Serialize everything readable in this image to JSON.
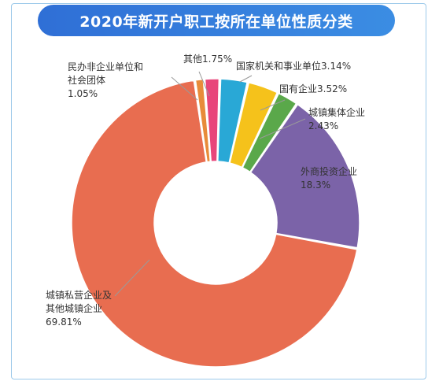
{
  "chart_data": {
    "type": "pie",
    "donut": true,
    "title": "2020年新开户职工按所在单位性质分类",
    "slices": [
      {
        "label_lines": [
          "国家机关和事业单位3.14%"
        ],
        "value": 3.14,
        "color": "#5aa84a"
      },
      {
        "label_lines": [
          "国有企业3.52%"
        ],
        "value": 3.52,
        "color": "#f5c21b"
      },
      {
        "label_lines": [
          "城镇集体企业",
          "2.43%"
        ],
        "value": 2.43,
        "color": "#5aa84a"
      },
      {
        "label_lines": [
          "外商投资企业",
          "18.3%"
        ],
        "value": 18.3,
        "color": "#7b63a8"
      },
      {
        "label_lines": [
          "城镇私营企业及",
          "其他城镇企业",
          "69.81%"
        ],
        "value": 69.81,
        "color": "#e86d50"
      },
      {
        "label_lines": [
          "民办非企业单位和",
          "社会团体",
          "1.05%"
        ],
        "value": 1.05,
        "color": "#e88b3a"
      },
      {
        "label_lines": [
          "其他1.75%"
        ],
        "value": 1.75,
        "color": "#e8457a"
      }
    ],
    "first_slice_color": "#29a8d6"
  }
}
